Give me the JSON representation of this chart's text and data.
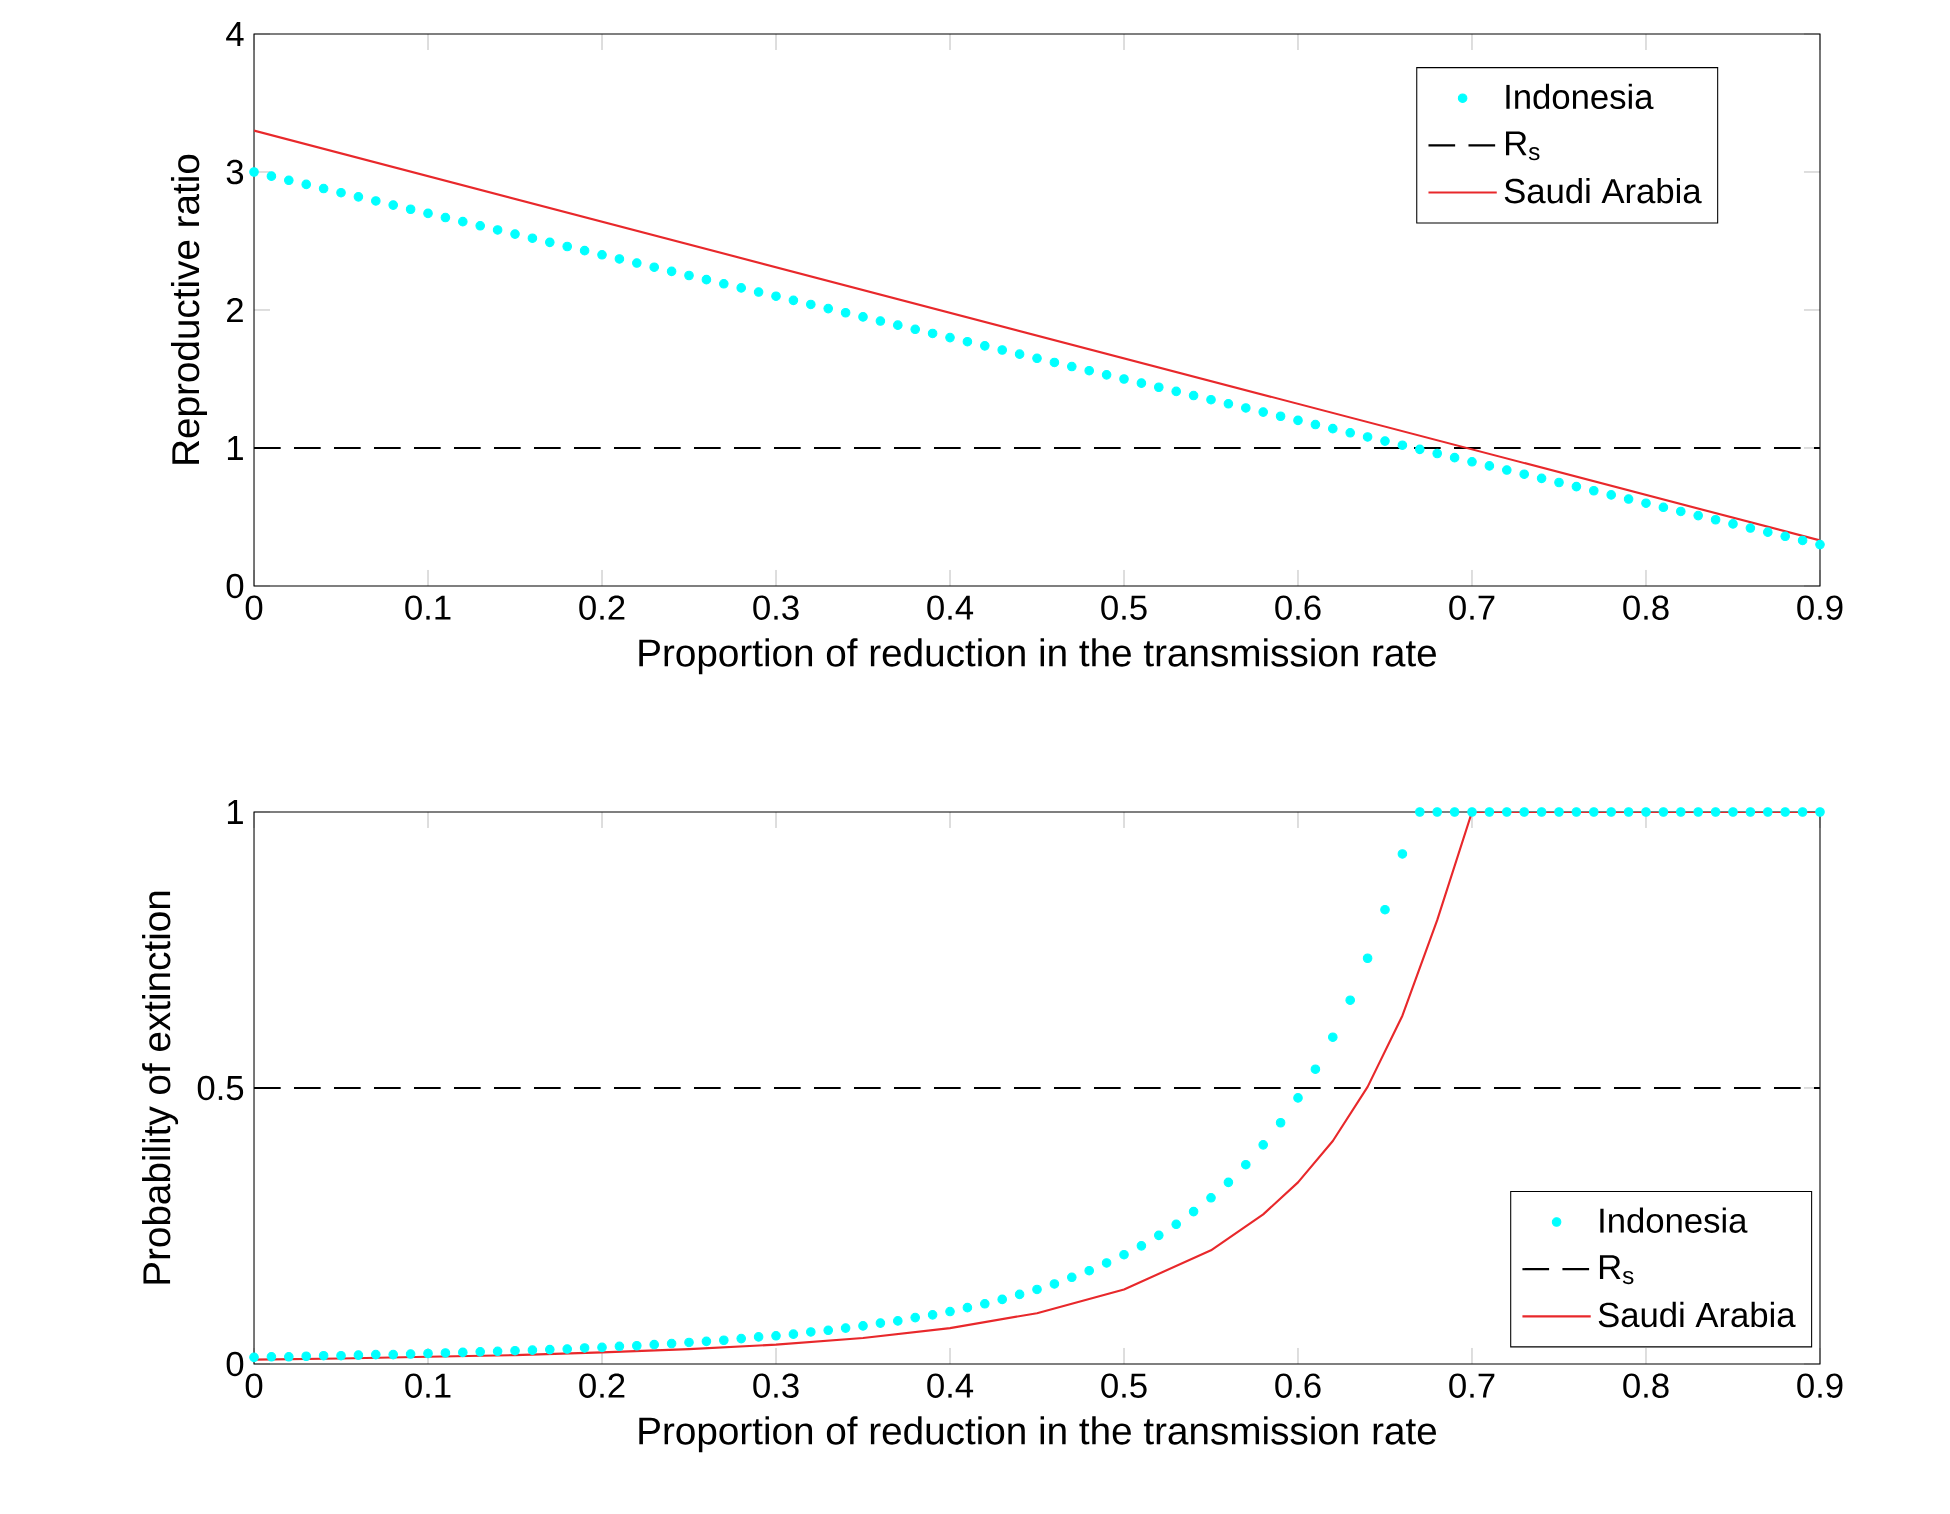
{
  "chart_data": [
    {
      "type": "line",
      "xlabel": "Proportion of reduction in the transmission rate",
      "ylabel": "Reproductive ratio",
      "x": [
        0,
        0.01,
        0.02,
        0.03,
        0.04,
        0.05,
        0.06,
        0.07,
        0.08,
        0.09,
        0.1,
        0.11,
        0.12,
        0.13,
        0.14,
        0.15,
        0.16,
        0.17,
        0.18,
        0.19,
        0.2,
        0.21,
        0.22,
        0.23,
        0.24,
        0.25,
        0.26,
        0.27,
        0.28,
        0.29,
        0.3,
        0.31,
        0.32,
        0.33,
        0.34,
        0.35,
        0.36,
        0.37,
        0.38,
        0.39,
        0.4,
        0.41,
        0.42,
        0.43,
        0.44,
        0.45,
        0.46,
        0.47,
        0.48,
        0.49,
        0.5,
        0.51,
        0.52,
        0.53,
        0.54,
        0.55,
        0.56,
        0.57,
        0.58,
        0.59,
        0.6,
        0.61,
        0.62,
        0.63,
        0.64,
        0.65,
        0.66,
        0.67,
        0.68,
        0.69,
        0.7,
        0.71,
        0.72,
        0.73,
        0.74,
        0.75,
        0.76,
        0.77,
        0.78,
        0.79,
        0.8,
        0.81,
        0.82,
        0.83,
        0.84,
        0.85,
        0.86,
        0.87,
        0.88,
        0.89,
        0.9
      ],
      "series": [
        {
          "name": "Indonesia",
          "type": "scatter",
          "marker": "circle",
          "color": "#00ffff",
          "values": [
            3,
            2.97,
            2.94,
            2.91,
            2.88,
            2.85,
            2.82,
            2.79,
            2.76,
            2.73,
            2.7,
            2.67,
            2.64,
            2.61,
            2.58,
            2.55,
            2.52,
            2.49,
            2.46,
            2.43,
            2.4,
            2.37,
            2.34,
            2.31,
            2.28,
            2.25,
            2.22,
            2.19,
            2.16,
            2.13,
            2.1,
            2.07,
            2.04,
            2.01,
            1.98,
            1.95,
            1.92,
            1.89,
            1.86,
            1.83,
            1.8,
            1.77,
            1.74,
            1.71,
            1.68,
            1.65,
            1.62,
            1.59,
            1.56,
            1.53,
            1.5,
            1.47,
            1.44,
            1.41,
            1.38,
            1.35,
            1.32,
            1.29,
            1.26,
            1.23,
            1.2,
            1.17,
            1.14,
            1.11,
            1.08,
            1.05,
            1.02,
            0.99,
            0.96,
            0.93,
            0.9,
            0.87,
            0.84,
            0.81,
            0.78,
            0.75,
            0.72,
            0.69,
            0.66,
            0.63,
            0.6,
            0.57,
            0.54,
            0.51,
            0.48,
            0.45,
            0.42,
            0.39,
            0.36,
            0.33,
            0.3
          ]
        },
        {
          "name": "R$_{s}$",
          "line_style": "dashed",
          "color": "#000000",
          "x": [
            0,
            0.9
          ],
          "values": [
            1,
            1
          ]
        },
        {
          "name": "Saudi Arabia",
          "line_style": "solid",
          "color": "#e8282b",
          "x": [
            0,
            0.9
          ],
          "values": [
            3.3,
            0.33
          ]
        }
      ],
      "xlim": [
        0,
        0.9
      ],
      "ylim": [
        0,
        4
      ],
      "xticks": [
        0,
        0.1,
        0.2,
        0.3,
        0.4,
        0.5,
        0.6,
        0.7,
        0.8,
        0.9
      ],
      "yticks": [
        0,
        1,
        2,
        3,
        4
      ],
      "legend": "top right"
    },
    {
      "type": "line",
      "xlabel": "Proportion of reduction in the transmission rate",
      "ylabel": "Probability of extinction",
      "x": [
        0,
        0.01,
        0.02,
        0.03,
        0.04,
        0.05,
        0.06,
        0.07,
        0.08,
        0.09,
        0.1,
        0.11,
        0.12,
        0.13,
        0.14,
        0.15,
        0.16,
        0.17,
        0.18,
        0.19,
        0.2,
        0.21,
        0.22,
        0.23,
        0.24,
        0.25,
        0.26,
        0.27,
        0.28,
        0.29,
        0.3,
        0.31,
        0.32,
        0.33,
        0.34,
        0.35,
        0.36,
        0.37,
        0.38,
        0.39,
        0.4,
        0.41,
        0.42,
        0.43,
        0.44,
        0.45,
        0.46,
        0.47,
        0.48,
        0.49,
        0.5,
        0.51,
        0.52,
        0.53,
        0.54,
        0.55,
        0.56,
        0.57,
        0.58,
        0.59,
        0.6,
        0.61,
        0.62,
        0.63,
        0.64,
        0.65,
        0.66,
        0.67,
        0.68,
        0.69,
        0.7,
        0.71,
        0.72,
        0.73,
        0.74,
        0.75,
        0.76,
        0.77,
        0.78,
        0.79,
        0.8,
        0.81,
        0.82,
        0.83,
        0.84,
        0.85,
        0.86,
        0.87,
        0.88,
        0.89,
        0.9
      ],
      "series": [
        {
          "name": "Indonesia",
          "type": "scatter",
          "marker": "circle",
          "color": "#00ffff",
          "values": [
            0.012,
            0.013,
            0.013,
            0.014,
            0.015,
            0.015,
            0.016,
            0.017,
            0.017,
            0.018,
            0.019,
            0.02,
            0.021,
            0.022,
            0.023,
            0.024,
            0.025,
            0.026,
            0.027,
            0.029,
            0.03,
            0.032,
            0.033,
            0.035,
            0.037,
            0.039,
            0.041,
            0.043,
            0.046,
            0.049,
            0.051,
            0.054,
            0.058,
            0.061,
            0.065,
            0.069,
            0.074,
            0.078,
            0.084,
            0.089,
            0.095,
            0.102,
            0.109,
            0.117,
            0.126,
            0.135,
            0.145,
            0.157,
            0.169,
            0.183,
            0.198,
            0.214,
            0.233,
            0.253,
            0.276,
            0.301,
            0.329,
            0.361,
            0.397,
            0.437,
            0.482,
            0.534,
            0.592,
            0.659,
            0.735,
            0.823,
            0.924,
            1,
            1,
            1,
            1,
            1,
            1,
            1,
            1,
            1,
            1,
            1,
            1,
            1,
            1,
            1,
            1,
            1,
            1,
            1,
            1,
            1,
            1,
            1,
            1
          ]
        },
        {
          "name": "R$_{s}$",
          "line_style": "dashed",
          "color": "#000000",
          "x": [
            0,
            0.9
          ],
          "values": [
            0.5,
            0.5
          ]
        },
        {
          "name": "Saudi Arabia",
          "line_style": "solid",
          "color": "#e8282b",
          "x": [
            0,
            0.05,
            0.1,
            0.15,
            0.2,
            0.25,
            0.3,
            0.35,
            0.4,
            0.45,
            0.5,
            0.55,
            0.58,
            0.6,
            0.62,
            0.64,
            0.66,
            0.68,
            0.7,
            0.9
          ],
          "values": [
            0.008,
            0.01,
            0.013,
            0.016,
            0.021,
            0.027,
            0.035,
            0.047,
            0.065,
            0.092,
            0.135,
            0.206,
            0.271,
            0.329,
            0.404,
            0.502,
            0.631,
            0.804,
            1,
            1
          ]
        }
      ],
      "xlim": [
        0,
        0.9
      ],
      "ylim": [
        0,
        1
      ],
      "xticks": [
        0,
        0.1,
        0.2,
        0.3,
        0.4,
        0.5,
        0.6,
        0.7,
        0.8,
        0.9
      ],
      "yticks": [
        0,
        0.5,
        1
      ],
      "legend": "bottom right"
    }
  ]
}
